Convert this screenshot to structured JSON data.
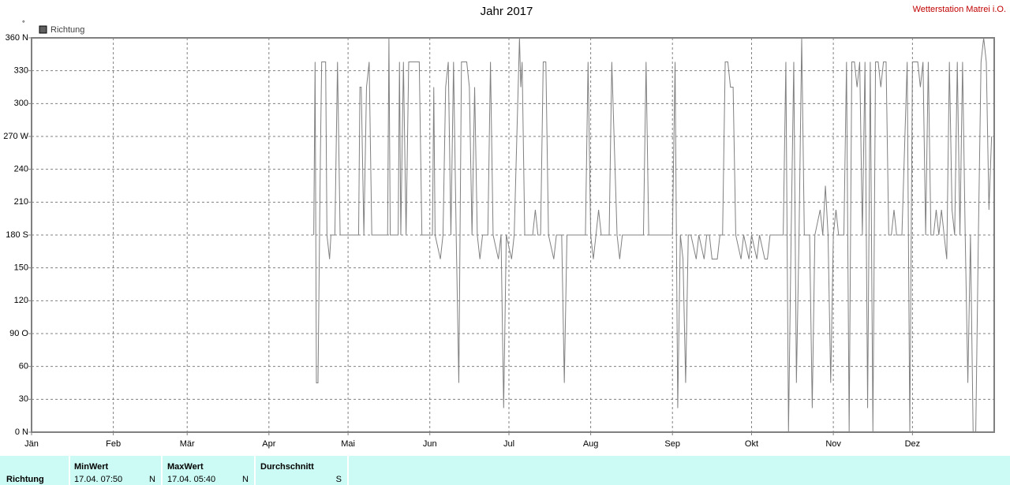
{
  "chart_data": {
    "type": "line",
    "title": "Jahr 2017",
    "source": "Wetterstation Matrei i.O.",
    "y_unit": "°",
    "xlim": [
      0,
      365
    ],
    "ylim": [
      0,
      360
    ],
    "xticks": [
      {
        "value": 0,
        "label": "Jän"
      },
      {
        "value": 31,
        "label": "Feb"
      },
      {
        "value": 59,
        "label": "Mär"
      },
      {
        "value": 90,
        "label": "Apr"
      },
      {
        "value": 120,
        "label": "Mai"
      },
      {
        "value": 151,
        "label": "Jun"
      },
      {
        "value": 181,
        "label": "Jul"
      },
      {
        "value": 212,
        "label": "Aug"
      },
      {
        "value": 243,
        "label": "Sep"
      },
      {
        "value": 273,
        "label": "Okt"
      },
      {
        "value": 304,
        "label": "Nov"
      },
      {
        "value": 334,
        "label": "Dez"
      }
    ],
    "yticks": [
      {
        "value": 0,
        "label": "0  N"
      },
      30,
      60,
      {
        "value": 90,
        "label": "90  O"
      },
      120,
      150,
      {
        "value": 180,
        "label": "180 S"
      },
      210,
      240,
      {
        "value": 270,
        "label": "270 W"
      },
      300,
      330,
      {
        "value": 360,
        "label": "360 N"
      }
    ],
    "grid": true,
    "x": [
      107,
      107.5,
      108,
      108.6,
      109.5,
      110,
      111.5,
      112,
      113,
      113.5,
      115,
      116,
      117,
      124,
      124.5,
      125,
      126,
      127,
      128,
      129,
      135,
      135.5,
      136,
      139,
      139.5,
      140,
      141,
      142,
      143,
      147,
      148,
      152,
      152.5,
      153,
      155,
      156,
      157,
      158,
      159,
      160,
      161,
      162,
      163,
      165,
      166,
      167,
      168,
      169,
      170,
      171,
      173,
      174,
      175,
      177,
      178,
      179,
      180,
      182,
      183,
      185,
      185.5,
      186,
      187,
      190,
      191,
      192,
      193,
      194,
      195,
      196,
      198,
      199,
      201,
      202,
      203,
      210,
      211,
      212,
      213,
      214,
      215,
      216,
      219,
      220,
      222,
      223,
      224,
      232,
      233,
      234,
      243,
      244,
      245,
      246,
      247,
      248,
      249,
      250,
      252,
      253,
      255,
      256,
      257,
      258,
      260,
      261,
      262,
      263,
      264,
      265,
      266,
      267,
      269,
      270,
      272,
      273,
      275,
      276,
      278,
      279,
      280,
      285,
      286,
      287,
      288,
      289,
      290,
      291,
      292,
      293,
      295,
      296,
      297,
      299,
      300,
      301,
      302,
      303,
      304,
      305,
      306,
      308,
      309,
      310,
      311,
      312,
      313,
      314,
      315,
      316,
      317,
      318,
      319,
      320,
      321,
      322,
      323,
      324,
      325,
      326,
      327,
      328,
      330,
      332,
      333,
      334,
      335,
      336,
      337,
      338,
      339,
      340,
      341,
      342,
      343,
      344,
      345,
      346,
      347,
      348,
      349,
      350,
      351,
      352,
      353,
      354,
      355,
      356,
      357,
      358,
      359,
      360,
      361,
      362,
      363,
      364
    ],
    "series": [
      {
        "name": "Richtung",
        "color": "#808080",
        "values": [
          180,
          338,
          45,
          45,
          250,
          338,
          338,
          180,
          158,
          180,
          180,
          338,
          180,
          180,
          315,
          315,
          180,
          315,
          338,
          180,
          180,
          360,
          180,
          180,
          338,
          180,
          338,
          180,
          338,
          338,
          180,
          180,
          315,
          180,
          158,
          180,
          315,
          338,
          180,
          338,
          180,
          45,
          338,
          338,
          315,
          180,
          315,
          180,
          158,
          180,
          180,
          338,
          180,
          158,
          180,
          22,
          180,
          158,
          180,
          360,
          315,
          338,
          180,
          180,
          203,
          180,
          180,
          338,
          338,
          180,
          158,
          180,
          180,
          45,
          180,
          180,
          338,
          180,
          158,
          180,
          203,
          180,
          180,
          338,
          180,
          158,
          180,
          180,
          338,
          180,
          180,
          338,
          22,
          180,
          158,
          45,
          180,
          180,
          158,
          180,
          158,
          180,
          180,
          158,
          158,
          180,
          180,
          338,
          338,
          315,
          315,
          180,
          158,
          180,
          158,
          180,
          158,
          180,
          158,
          158,
          180,
          180,
          338,
          0,
          180,
          338,
          45,
          180,
          360,
          180,
          180,
          22,
          180,
          203,
          180,
          225,
          180,
          45,
          180,
          203,
          180,
          180,
          338,
          0,
          338,
          338,
          315,
          338,
          180,
          338,
          22,
          338,
          0,
          338,
          338,
          315,
          338,
          338,
          180,
          180,
          203,
          180,
          180,
          338,
          0,
          338,
          338,
          338,
          315,
          338,
          180,
          338,
          180,
          180,
          203,
          180,
          203,
          180,
          158,
          338,
          203,
          180,
          338,
          180,
          338,
          180,
          45,
          180,
          0,
          0,
          180,
          338,
          360,
          338,
          203,
          270
        ]
      }
    ]
  },
  "table": {
    "row_label": "Richtung",
    "min": {
      "header": "MinWert",
      "time": "17.04.  07:50",
      "dir": "N"
    },
    "max": {
      "header": "MaxWert",
      "time": "17.04.  05:40",
      "dir": "N"
    },
    "avg": {
      "header": "Durchschnitt",
      "dir": "S"
    }
  }
}
